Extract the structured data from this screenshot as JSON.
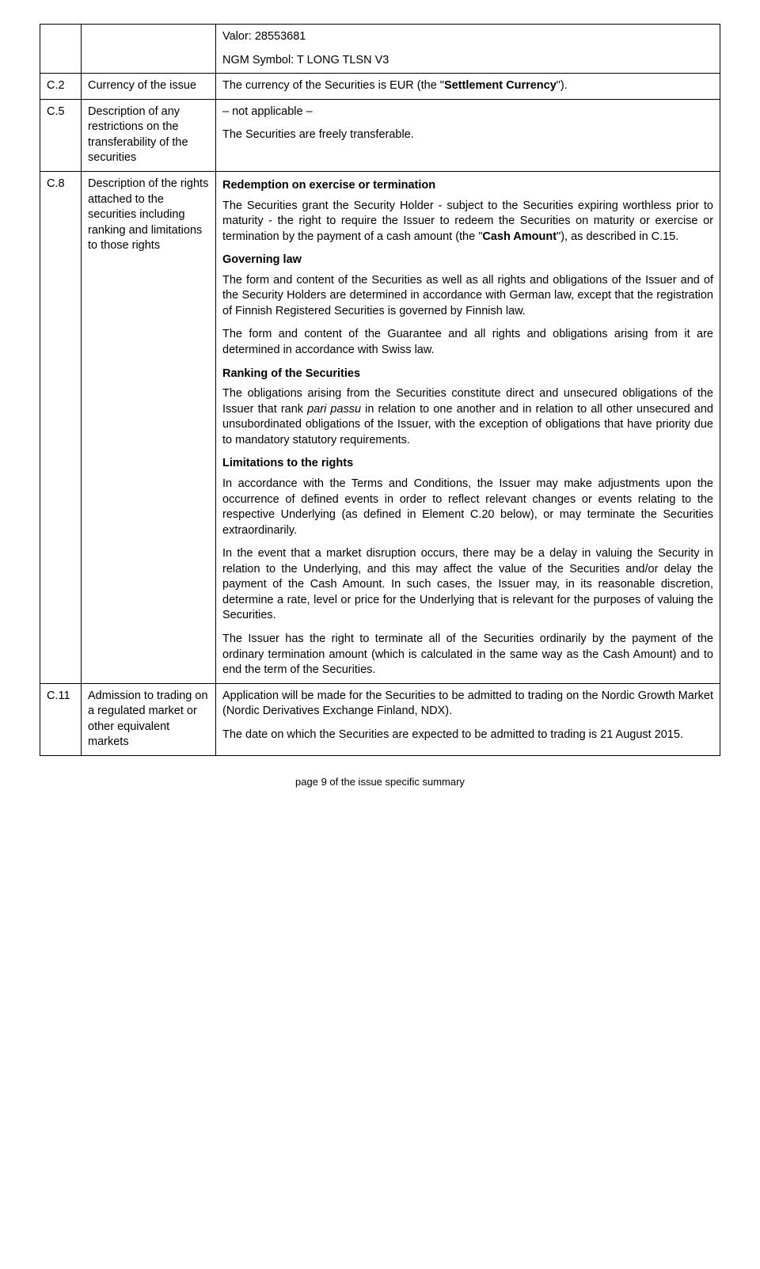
{
  "rows": [
    {
      "num": "",
      "label": "",
      "body": [
        {
          "type": "p",
          "text": "Valor: 28553681"
        },
        {
          "type": "p",
          "text": "NGM Symbol: T LONG TLSN V3"
        }
      ]
    },
    {
      "num": "C.2",
      "label": "Currency of the issue",
      "body": [
        {
          "type": "p",
          "html": "The currency of the Securities is EUR (the \"<b>Settlement Currency</b>\")."
        }
      ]
    },
    {
      "num": "C.5",
      "label": "Description of any restrictions on the transferability of the securities",
      "body": [
        {
          "type": "p",
          "text": "– not applicable –"
        },
        {
          "type": "p",
          "text": "The Securities are freely transferable."
        }
      ]
    },
    {
      "num": "C.8",
      "label": "Description of the rights attached to the securities including ranking and limitations to those rights",
      "body": [
        {
          "type": "head",
          "text": "Redemption on exercise or termination"
        },
        {
          "type": "p",
          "justify": true,
          "html": "The Securities grant the Security Holder - subject to the Securities expiring worthless prior to maturity - the right to require the Issuer to redeem the Securities on maturity or exercise or termination by the payment of a cash amount (the \"<b>Cash Amount</b>\"), as described in C.15."
        },
        {
          "type": "head",
          "text": "Governing law"
        },
        {
          "type": "p",
          "justify": true,
          "text": "The form and content of the Securities as well as all rights and obligations of the Issuer and of the Security Holders are determined in accordance with German law, except that the registration of Finnish Registered Securities is governed by Finnish law."
        },
        {
          "type": "p",
          "justify": true,
          "text": "The form and content of the Guarantee and all rights and obligations arising from it are determined in accordance with Swiss law."
        },
        {
          "type": "head",
          "text": "Ranking of the Securities"
        },
        {
          "type": "p",
          "justify": true,
          "html": "The obligations arising from the Securities constitute direct and unsecured obligations of the Issuer that rank <i>pari passu</i> in relation to one another and in relation to all other unsecured and unsubordinated obligations of the Issuer, with the exception of obligations that have priority due to mandatory statutory requirements."
        },
        {
          "type": "head",
          "text": "Limitations to the rights"
        },
        {
          "type": "p",
          "justify": true,
          "text": "In accordance with the Terms and Conditions, the Issuer may make adjustments upon the occurrence of defined events in order to reflect relevant changes or events relating to the respective Underlying (as defined in Element C.20 below), or may terminate the Securities extraordinarily."
        },
        {
          "type": "p",
          "justify": true,
          "text": "In the event that a market disruption occurs, there may be a delay in valuing the Security in relation to the Underlying, and this may affect the value of the Securities and/or delay the payment of the Cash Amount. In such cases, the Issuer may, in its reasonable discretion, determine a rate, level or price for the Underlying that is relevant for the purposes of valuing the Securities."
        },
        {
          "type": "p",
          "justify": true,
          "text": "The Issuer has the right to terminate all of the Securities ordinarily by the payment of the ordinary termination amount (which is calculated in the same way as the Cash Amount) and to end the term of the Securities."
        }
      ]
    },
    {
      "num": "C.11",
      "label": "Admission to trading on a regulated market or other equivalent markets",
      "body": [
        {
          "type": "p",
          "justify": true,
          "text": "Application will be made for the Securities to be admitted to trading on the Nordic Growth Market (Nordic Derivatives Exchange Finland, NDX)."
        },
        {
          "type": "p",
          "justify": true,
          "text": "The date on which the Securities are expected to be admitted to trading is 21 August 2015."
        }
      ]
    }
  ],
  "footer": "page 9 of the issue specific summary"
}
